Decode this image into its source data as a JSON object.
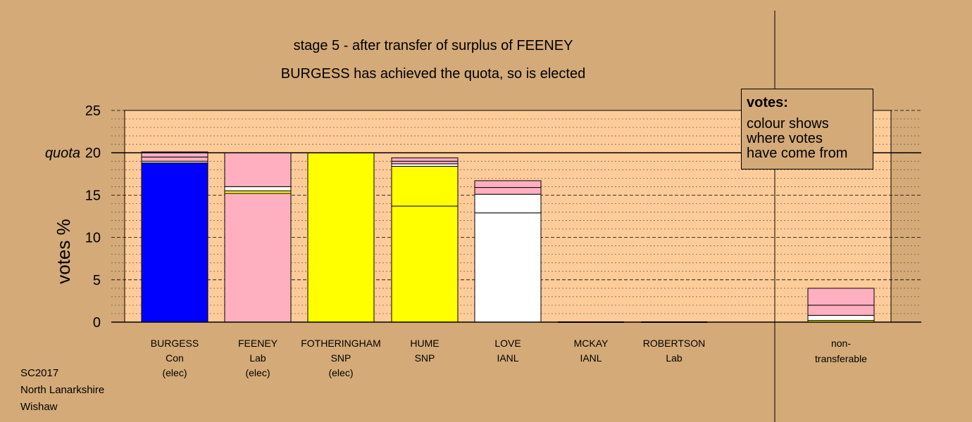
{
  "titles": {
    "line1": "stage 5 - after transfer of surplus of FEENEY",
    "line2": "BURGESS has achieved the quota, so is elected"
  },
  "legend": {
    "title": "votes:",
    "lines": [
      "colour shows",
      "where votes",
      "have come from"
    ]
  },
  "footer": [
    "SC2017",
    "North Lanarkshire",
    "Wishaw"
  ],
  "colors": {
    "background": "#d4aa78",
    "plot": "#ffcc99",
    "Con": "#0000ff",
    "Lab": "#ffb0c0",
    "SNP": "#ffff00",
    "IANL": "#ffffff"
  },
  "chart_data": {
    "type": "bar",
    "stacked": true,
    "ylabel": "votes %",
    "ylim": [
      0,
      25
    ],
    "yticks": [
      0,
      5,
      10,
      15,
      20,
      25
    ],
    "quota": 20,
    "quota_label": "quota",
    "grid": true,
    "categories": [
      "BURGESS",
      "FEENEY",
      "FOTHERINGHAM",
      "HUME",
      "LOVE",
      "MCKAY",
      "ROBERTSON",
      "non-transferable"
    ],
    "candidates": [
      {
        "name": "BURGESS",
        "party": "Con",
        "status": "(elec)",
        "segments": [
          {
            "source": "Con",
            "value": 18.8
          },
          {
            "source": "IANL",
            "value": 0.2
          },
          {
            "source": "Lab",
            "value": 0.5
          },
          {
            "source": "Lab",
            "value": 0.6
          }
        ]
      },
      {
        "name": "FEENEY",
        "party": "Lab",
        "status": "(elec)",
        "segments": [
          {
            "source": "Lab",
            "value": 15.2
          },
          {
            "source": "SNP",
            "value": 0.3
          },
          {
            "source": "IANL",
            "value": 0.5
          },
          {
            "source": "Lab",
            "value": 4.0
          }
        ]
      },
      {
        "name": "FOTHERINGHAM",
        "party": "SNP",
        "status": "(elec)",
        "segments": [
          {
            "source": "SNP",
            "value": 20.0
          }
        ]
      },
      {
        "name": "HUME",
        "party": "SNP",
        "status": "",
        "segments": [
          {
            "source": "SNP",
            "value": 13.7
          },
          {
            "source": "SNP",
            "value": 4.7
          },
          {
            "source": "IANL",
            "value": 0.3
          },
          {
            "source": "Lab",
            "value": 0.3
          },
          {
            "source": "Lab",
            "value": 0.4
          }
        ]
      },
      {
        "name": "LOVE",
        "party": "IANL",
        "status": "",
        "segments": [
          {
            "source": "IANL",
            "value": 12.9
          },
          {
            "source": "IANL",
            "value": 2.2
          },
          {
            "source": "Lab",
            "value": 0.8
          },
          {
            "source": "Lab",
            "value": 0.8
          }
        ]
      },
      {
        "name": "MCKAY",
        "party": "IANL",
        "status": "",
        "segments": []
      },
      {
        "name": "ROBERTSON",
        "party": "Lab",
        "status": "",
        "segments": []
      },
      {
        "name": "non-",
        "party": "transferable",
        "status": "",
        "segments": [
          {
            "source": "SNP",
            "value": 0.2
          },
          {
            "source": "IANL",
            "value": 0.6
          },
          {
            "source": "Lab",
            "value": 1.2
          },
          {
            "source": "Lab",
            "value": 2.0
          }
        ]
      }
    ]
  }
}
